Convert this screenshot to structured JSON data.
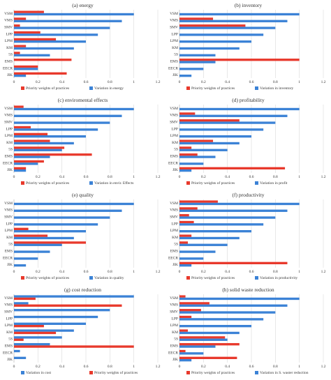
{
  "colors": {
    "priority": "#e8392c",
    "variation": "#3b82d6",
    "grid": "#d9d9d9",
    "axis": "#bfbfbf",
    "text": "#333333"
  },
  "chart_data": [
    {
      "type": "bar",
      "title": "(a) energy",
      "categories": [
        "VSM",
        "VMS",
        "SMV",
        "LPP",
        "LPM",
        "KM",
        "5S",
        "EMS",
        "EECR",
        "JIK"
      ],
      "series": [
        {
          "name": "Priority weights of practices",
          "values": [
            0.25,
            0.1,
            0.05,
            0.22,
            0.35,
            0.1,
            0.05,
            0.48,
            0.2,
            0.44
          ]
        },
        {
          "name": "Variation in energy",
          "values": [
            1.0,
            0.9,
            0.8,
            0.7,
            0.6,
            0.5,
            0.3,
            0.0,
            0.2,
            0.1
          ]
        }
      ],
      "xlim": [
        0,
        1.2
      ],
      "ticks": [
        "0",
        "0.2",
        "0.4",
        "0.6",
        "0.8",
        "1",
        "1.2"
      ],
      "legend_position": "bottom"
    },
    {
      "type": "bar",
      "title": "(b) inventory",
      "categories": [
        "VSM",
        "VMS",
        "SMV",
        "LPP",
        "LPM",
        "KM",
        "5S",
        "EMS",
        "EECR",
        "JIK"
      ],
      "series": [
        {
          "name": "Priority weights of practices",
          "values": [
            0.0,
            0.28,
            0.55,
            0.0,
            0.0,
            0.0,
            0.0,
            1.0,
            0.0,
            0.0
          ]
        },
        {
          "name": "Variation in inventory",
          "values": [
            1.0,
            0.9,
            0.8,
            0.7,
            0.6,
            0.5,
            0.3,
            0.3,
            0.2,
            0.1
          ]
        }
      ],
      "xlim": [
        0,
        1.2
      ],
      "ticks": [
        "0",
        "0.2",
        "0.4",
        "0.6",
        "0.8",
        "1",
        "1.2"
      ],
      "legend_position": "bottom"
    },
    {
      "type": "bar",
      "title": "(c) enviromental effects",
      "categories": [
        "VSM",
        "VMS",
        "SMV",
        "LPP",
        "LPM",
        "KM",
        "5S",
        "EMS",
        "EECR",
        "JIK"
      ],
      "series": [
        {
          "name": "Priority weights of practices",
          "values": [
            0.08,
            0.0,
            0.0,
            0.14,
            0.28,
            0.3,
            0.42,
            0.65,
            0.25,
            0.1
          ]
        },
        {
          "name": "Variation in envir. Effects",
          "values": [
            1.0,
            0.9,
            0.8,
            0.7,
            0.6,
            0.5,
            0.4,
            0.3,
            0.2,
            0.1
          ]
        }
      ],
      "xlim": [
        0,
        1.2
      ],
      "ticks": [
        "0",
        "0.2",
        "0.4",
        "0.6",
        "0.8",
        "1",
        "1.2"
      ],
      "legend_position": "bottom"
    },
    {
      "type": "bar",
      "title": "(d) profitability",
      "categories": [
        "VSM",
        "VMS",
        "SMV",
        "LPP",
        "LPM",
        "KM",
        "5S",
        "EMS",
        "EECR",
        "JIK"
      ],
      "series": [
        {
          "name": "Priority weights of practices",
          "values": [
            0.0,
            0.13,
            0.5,
            0.0,
            0.0,
            0.28,
            0.1,
            0.15,
            0.0,
            0.88
          ]
        },
        {
          "name": "Variation in profit",
          "values": [
            1.0,
            0.9,
            0.8,
            0.7,
            0.6,
            0.5,
            0.4,
            0.3,
            0.2,
            0.1
          ]
        }
      ],
      "xlim": [
        0,
        1.2
      ],
      "ticks": [
        "0",
        "0.2",
        "0.4",
        "0.6",
        "0.8",
        "1",
        "1.2"
      ],
      "legend_position": "bottom"
    },
    {
      "type": "bar",
      "title": "(e) quality",
      "categories": [
        "VSM",
        "VMS",
        "SMV",
        "LPP",
        "LPM",
        "KM",
        "5S",
        "EMS",
        "EECR",
        "JIK"
      ],
      "series": [
        {
          "name": "Priority weights of practices",
          "values": [
            0.0,
            0.0,
            0.0,
            0.0,
            0.12,
            0.28,
            0.6,
            0.0,
            0.0,
            0.0
          ]
        },
        {
          "name": "Variation in quality",
          "values": [
            1.0,
            0.9,
            0.8,
            0.7,
            0.6,
            0.5,
            0.4,
            0.3,
            0.2,
            0.1
          ]
        }
      ],
      "xlim": [
        0,
        1.2
      ],
      "ticks": [
        "0",
        "0.2",
        "0.4",
        "0.6",
        "0.8",
        "1",
        "1.2"
      ],
      "legend_position": "bottom"
    },
    {
      "type": "bar",
      "title": "(f) productivity",
      "categories": [
        "VSM",
        "VMS",
        "SMV",
        "LPP",
        "LPM",
        "KM",
        "5S",
        "EMS",
        "EECR",
        "JIK"
      ],
      "series": [
        {
          "name": "Priority weights of practices",
          "values": [
            0.32,
            0.15,
            0.08,
            0.12,
            0.0,
            0.1,
            0.07,
            0.0,
            0.0,
            0.9
          ]
        },
        {
          "name": "Variation in productivity",
          "values": [
            1.0,
            0.9,
            0.8,
            0.7,
            0.6,
            0.5,
            0.4,
            0.3,
            0.2,
            0.1
          ]
        }
      ],
      "xlim": [
        0,
        1.2
      ],
      "ticks": [
        "0",
        "0.2",
        "0.4",
        "0.6",
        "0.8",
        "1",
        "1.2"
      ],
      "legend_position": "bottom"
    },
    {
      "type": "bar",
      "title": "(g) cost reduction",
      "categories": [
        "VSM",
        "VMS",
        "SMV",
        "LPP",
        "LPM",
        "KM",
        "5S",
        "EMS",
        "EECR",
        "JIK"
      ],
      "series": [
        {
          "name": "Variation in cost",
          "values": [
            1.0,
            0.12,
            0.8,
            0.7,
            0.6,
            0.5,
            0.4,
            0.3,
            0.05,
            0.1
          ]
        },
        {
          "name": "Priority weights of practices",
          "values": [
            0.18,
            0.9,
            0.0,
            0.0,
            0.25,
            0.35,
            0.08,
            1.0,
            0.0,
            0.0
          ]
        }
      ],
      "xlim": [
        0,
        1.2
      ],
      "ticks": [
        "0",
        "0.2",
        "0.4",
        "0.6",
        "0.8",
        "1",
        "1.2"
      ],
      "legend_position": "bottom"
    },
    {
      "type": "bar",
      "title": "(h) solid waste reduction",
      "categories": [
        "VSM",
        "VMS",
        "SMV",
        "LPP",
        "LPM",
        "KM",
        "5S",
        "EMS",
        "EECR",
        "JIK"
      ],
      "series": [
        {
          "name": "Priority weights of practices",
          "values": [
            0.05,
            0.25,
            0.18,
            0.1,
            0.0,
            0.07,
            0.38,
            0.5,
            0.05,
            0.48
          ]
        },
        {
          "name": "Variation in S. waster reduction",
          "values": [
            1.0,
            0.9,
            0.8,
            0.7,
            0.6,
            0.5,
            0.4,
            0.3,
            0.2,
            0.1
          ]
        }
      ],
      "xlim": [
        0,
        1.2
      ],
      "ticks": [
        "0",
        "0.2",
        "0.4",
        "0.6",
        "0.8",
        "1",
        "1.2"
      ],
      "legend_position": "bottom"
    }
  ]
}
